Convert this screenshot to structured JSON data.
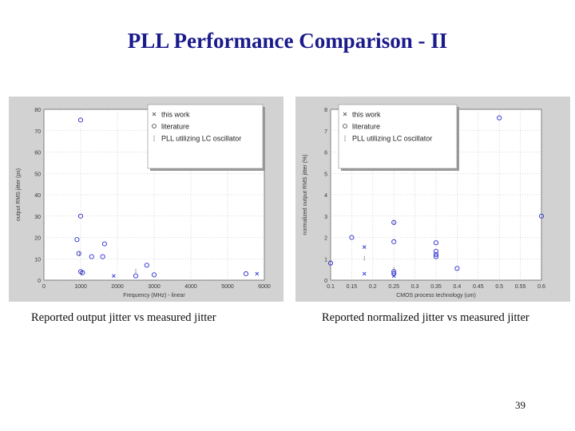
{
  "slide": {
    "title": "PLL Performance Comparison - II",
    "caption_left": "Reported output jitter vs measured jitter",
    "caption_right": "Reported normalized jitter vs measured jitter",
    "page_number": "39"
  },
  "colors": {
    "panel_bg": "#d2d2d2",
    "plot_bg": "#ffffff",
    "marker": "#2b2bd0",
    "axis_text": "#3a3a3a",
    "title": "#1a1a8c"
  },
  "chart_data": [
    {
      "type": "scatter",
      "xlabel": "Frequency (MHz) - linear",
      "ylabel": "output RMS jitter (ps)",
      "xlim": [
        0,
        6000
      ],
      "ylim": [
        0,
        80
      ],
      "xticks": [
        0,
        1000,
        2000,
        3000,
        4000,
        5000,
        6000
      ],
      "yticks": [
        0,
        10,
        20,
        30,
        40,
        50,
        60,
        70,
        80
      ],
      "grid": "dotted",
      "legend": {
        "placement": "top-right",
        "entries": [
          {
            "marker": "x",
            "label": "this work"
          },
          {
            "marker": "o",
            "label": "literature"
          },
          {
            "marker": "|",
            "label": "PLL utilizing LC oscillator"
          }
        ]
      },
      "series": [
        {
          "name": "this work",
          "marker": "x",
          "x": [
            1900,
            5800
          ],
          "y": [
            2,
            3
          ]
        },
        {
          "name": "literature",
          "marker": "o",
          "x": [
            900,
            950,
            1000,
            1000,
            1000,
            1050,
            1300,
            1600,
            1650,
            2500,
            2800,
            3000,
            5500
          ],
          "y": [
            19,
            12.5,
            75,
            30,
            4,
            3.5,
            11,
            11,
            17,
            2,
            7,
            2.5,
            3
          ]
        },
        {
          "name": "PLL utilizing LC oscillator",
          "marker": "|",
          "x": [
            970,
            1020,
            2500
          ],
          "y": [
            12,
            3,
            4
          ]
        }
      ]
    },
    {
      "type": "scatter",
      "xlabel": "CMOS process technology (um)",
      "ylabel": "normalized output RMS jitter (%)",
      "xlim": [
        0.1,
        0.6
      ],
      "ylim": [
        0,
        8
      ],
      "xticks": [
        0.1,
        0.15,
        0.2,
        0.25,
        0.3,
        0.35,
        0.4,
        0.45,
        0.5,
        0.55,
        0.6
      ],
      "xtick_labels": [
        "0.1",
        "0.15",
        "0.2",
        "0.25",
        "0.3",
        "0.35",
        "0.4",
        "0.45",
        "0.5",
        "0.55",
        "0.6"
      ],
      "yticks": [
        0,
        1,
        2,
        3,
        4,
        5,
        6,
        7,
        8
      ],
      "grid": "dotted",
      "legend": {
        "placement": "top-left",
        "entries": [
          {
            "marker": "x",
            "label": "this work"
          },
          {
            "marker": "o",
            "label": "literature"
          },
          {
            "marker": "|",
            "label": "PLL utilizing LC oscillator"
          }
        ]
      },
      "series": [
        {
          "name": "this work",
          "marker": "x",
          "x": [
            0.18,
            0.18,
            0.25
          ],
          "y": [
            1.55,
            0.3,
            0.2
          ]
        },
        {
          "name": "literature",
          "marker": "o",
          "x": [
            0.1,
            0.15,
            0.25,
            0.25,
            0.25,
            0.25,
            0.35,
            0.35,
            0.35,
            0.35,
            0.4,
            0.5,
            0.6
          ],
          "y": [
            0.8,
            2.0,
            2.7,
            1.8,
            0.4,
            0.3,
            1.75,
            1.35,
            1.2,
            1.1,
            0.55,
            7.6,
            3.0
          ]
        },
        {
          "name": "PLL utilizing LC oscillator",
          "marker": "|",
          "x": [
            0.18,
            0.25,
            0.25
          ],
          "y": [
            1.0,
            2.7,
            0.5
          ]
        }
      ]
    }
  ]
}
